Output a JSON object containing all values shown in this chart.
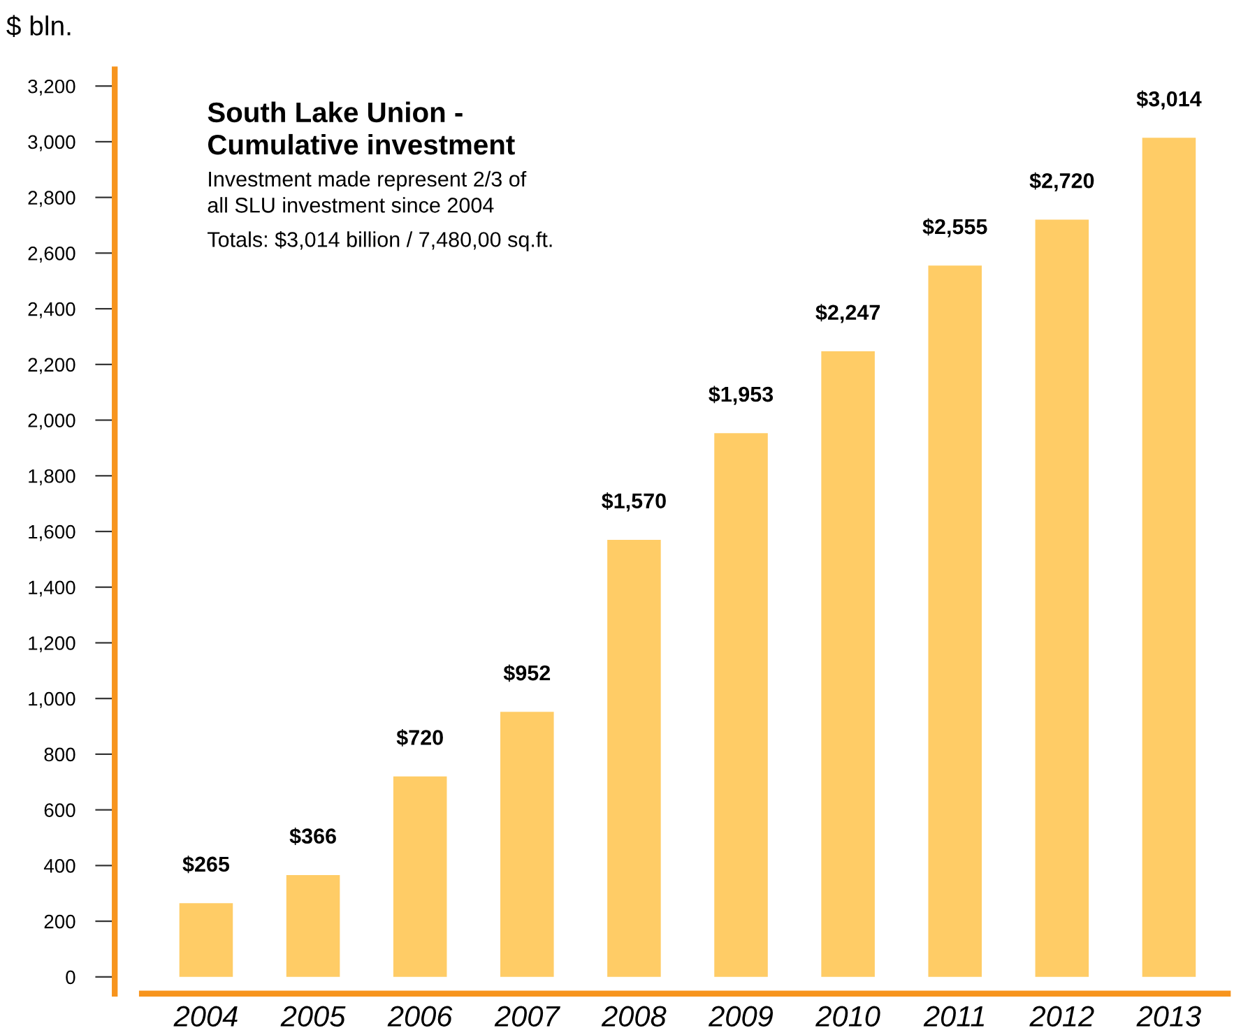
{
  "chart_data": {
    "type": "bar",
    "title": "South Lake Union -\nCumulative investment",
    "subtitle": "Investment made represent 2/3 of\nall SLU investment since 2004",
    "ylabel": "$ bln.",
    "annotations": [
      "Totals: $3,014 billion / 7,480,00 sq.ft."
    ],
    "categories": [
      "2004",
      "2005",
      "2006",
      "2007",
      "2008",
      "2009",
      "2010",
      "2011",
      "2012",
      "2013"
    ],
    "values": [
      265,
      366,
      720,
      952,
      1570,
      1953,
      2247,
      2555,
      2720,
      3014
    ],
    "value_labels": [
      "$265",
      "$366",
      "$720",
      "$952",
      "$1,570",
      "$1,953",
      "$2,247",
      "$2,555",
      "$2,720",
      "$3,014"
    ],
    "color": "#ffcc66",
    "ylim": [
      -60,
      3260
    ],
    "yticks": [
      0,
      200,
      400,
      600,
      800,
      {
        "value": 1000,
        "label": "1,000"
      },
      {
        "value": 1200,
        "label": "1,200"
      },
      {
        "value": 1400,
        "label": "1,400"
      },
      {
        "value": 1600,
        "label": "1,600"
      },
      {
        "value": 1800,
        "label": "1,800"
      },
      {
        "value": 2000,
        "label": "2,000"
      },
      {
        "value": 2200,
        "label": "2,200"
      },
      {
        "value": 2400,
        "label": "2,400"
      },
      {
        "value": 2600,
        "label": "2,600"
      },
      {
        "value": 2800,
        "label": "2,800"
      },
      {
        "value": 3000,
        "label": "3,000"
      },
      {
        "value": 3200,
        "label": "3,200"
      }
    ],
    "grid": false,
    "legend": false
  }
}
